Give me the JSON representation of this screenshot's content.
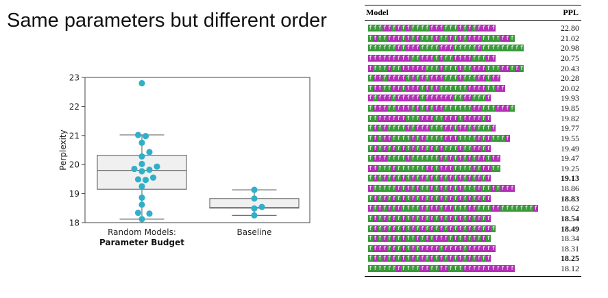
{
  "title": "Same parameters but different order",
  "chart_data": {
    "type": "box",
    "ylabel": "Perplexity",
    "ylim": [
      18,
      23
    ],
    "yticks": [
      18,
      19,
      20,
      21,
      22,
      23
    ],
    "categories": [
      {
        "line1": "Random Models:",
        "line2": "Parameter Budget"
      },
      {
        "line1": "Baseline",
        "line2": ""
      }
    ],
    "groups": [
      {
        "name": "Random Models: Parameter Budget",
        "box": {
          "whisker_low": 18.12,
          "q1": 19.15,
          "median": 19.8,
          "q3": 20.32,
          "whisker_high": 21.02
        },
        "points": [
          22.8,
          21.02,
          20.98,
          20.75,
          20.43,
          20.28,
          20.02,
          19.93,
          19.85,
          19.82,
          19.77,
          19.55,
          19.49,
          19.47,
          19.25,
          18.86,
          18.62,
          18.34,
          18.31,
          18.12
        ]
      },
      {
        "name": "Baseline",
        "box": {
          "whisker_low": 18.25,
          "q1": 18.5,
          "median": 18.52,
          "q3": 18.83,
          "whisker_high": 19.13
        },
        "points": [
          19.13,
          18.83,
          18.54,
          18.49,
          18.25
        ]
      }
    ],
    "colors": {
      "point": "#2fb0c8",
      "box_fill": "#f0f0f0",
      "box_edge": "#6e6e6e",
      "median": "#6e6e6e",
      "frame": "#444444"
    }
  },
  "table": {
    "header_model": "Model",
    "header_ppl": "PPL",
    "token_colors": {
      "a": "#3a9a3a",
      "b": "#b22fb6"
    },
    "rows": [
      {
        "seq": "aaabbababaaaabbbaaabababbbb",
        "ppl": "22.80",
        "bold": false
      },
      {
        "seq": "abaabbbababaaabaabababbbaaaabba",
        "ppl": "21.02",
        "bold": false
      },
      {
        "seq": "aaaaaababbbaaaabbbaaaaabaaaaaaaaa",
        "ppl": "20.98",
        "bold": false
      },
      {
        "seq": "bbbbbbbbbaabbbabaabbbbaaabb",
        "ppl": "20.75",
        "bold": false
      },
      {
        "seq": "baaabaabbbbbaaabaaabaabbbaaabbaba",
        "ppl": "20.43",
        "bold": false
      },
      {
        "seq": "abbabbbbabababbbaaabaaabbabb",
        "ppl": "20.28",
        "bold": false
      },
      {
        "seq": "abbaabbabbbababaaaaaabbbbaabb",
        "ppl": "20.02",
        "bold": false
      },
      {
        "seq": "babbbabbbbbabbbbbbaabbaaab",
        "ppl": "19.93",
        "bold": false
      },
      {
        "seq": "abbbaabbbabababbaaaaaabbaaabbba",
        "ppl": "19.85",
        "bold": false
      },
      {
        "seq": "aabbbbbbaaabbbaabbbabbbbab",
        "ppl": "19.82",
        "bold": false
      },
      {
        "seq": "ababaaaababbbaaabbabbabaaab",
        "ppl": "19.77",
        "bold": false
      },
      {
        "seq": "ababbaaaababaaaabbbaaaababaaab",
        "ppl": "19.55",
        "bold": false
      },
      {
        "seq": "ababababababababaaabaabbab",
        "ppl": "19.49",
        "bold": false
      },
      {
        "seq": "abbbaaaabaaaaaabababababbabb",
        "ppl": "19.47",
        "bold": false
      },
      {
        "seq": "bbaaabaaaaaabbabbbaaaababbaa",
        "ppl": "19.25",
        "bold": false
      },
      {
        "seq": "ababababababababababababab",
        "ppl": "19.13",
        "bold": true
      },
      {
        "seq": "baaaaabababaababababaaabaababbb",
        "ppl": "18.86",
        "bold": false
      },
      {
        "seq": "ababababababababababababab",
        "ppl": "18.83",
        "bold": true
      },
      {
        "seq": "babababaaaababbabbaaabbaaabbaaaaaaab",
        "ppl": "18.62",
        "bold": false
      },
      {
        "seq": "ababababababababababababab",
        "ppl": "18.54",
        "bold": true
      },
      {
        "seq": "abababababababababababababa",
        "ppl": "18.49",
        "bold": true
      },
      {
        "seq": "ababababaabababbbababababa",
        "ppl": "18.34",
        "bold": false
      },
      {
        "seq": "abbbababababbbbabbbbabbbbbb",
        "ppl": "18.31",
        "bold": false
      },
      {
        "seq": "ababababababababababababab",
        "ppl": "18.25",
        "bold": true
      },
      {
        "seq": "aaaaaabaaaabbaabbaaabbbbbbbbbbb",
        "ppl": "18.12",
        "bold": false
      }
    ]
  }
}
